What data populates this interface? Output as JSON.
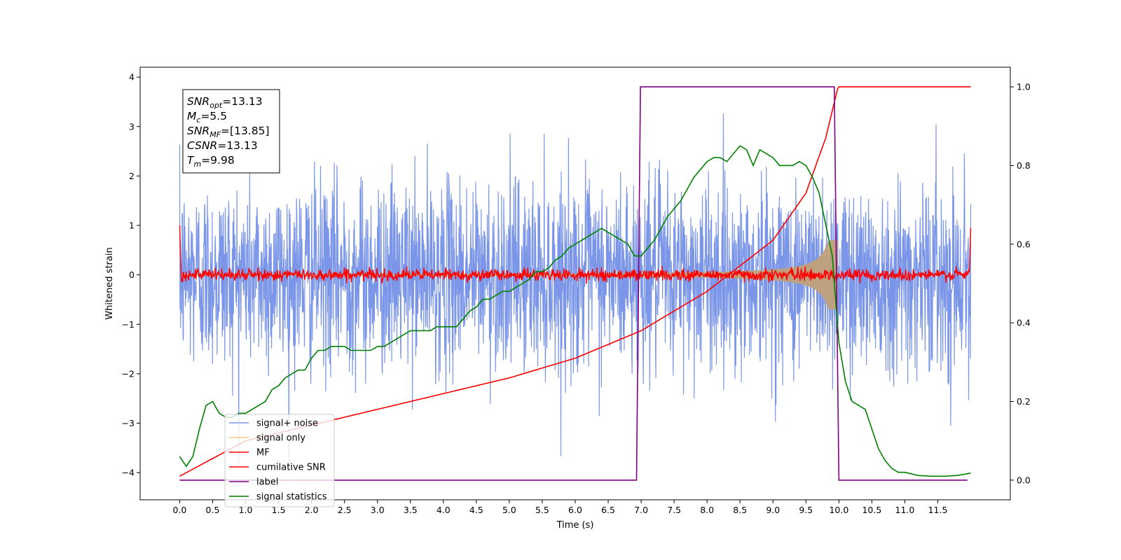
{
  "chart_data": {
    "type": "line",
    "xlabel": "Time (s)",
    "ylabel": "Whitened strain",
    "xlim": [
      -0.6,
      12.6
    ],
    "ylim_left": [
      -4.55,
      4.2
    ],
    "ylim_right": [
      -0.05,
      1.05
    ],
    "x_ticks": [
      "0.0",
      "0.5",
      "1.0",
      "1.5",
      "2.0",
      "2.5",
      "3.0",
      "3.5",
      "4.0",
      "4.5",
      "5.0",
      "5.5",
      "6.0",
      "6.5",
      "7.0",
      "7.5",
      "8.0",
      "8.5",
      "9.0",
      "9.5",
      "10.0",
      "10.5",
      "11.0",
      "11.5"
    ],
    "y_ticks_left": [
      "−4",
      "−3",
      "−2",
      "−1",
      "0",
      "1",
      "2",
      "3",
      "4"
    ],
    "y_ticks_right": [
      "0.0",
      "0.2",
      "0.4",
      "0.6",
      "0.8",
      "1.0"
    ],
    "annotation": {
      "lines": [
        {
          "base": "SNR",
          "sub": "opt",
          "rest": "=13.13"
        },
        {
          "base": "M",
          "sub": "c",
          "rest": "=5.5"
        },
        {
          "base": "SNR",
          "sub": "MF",
          "rest": "=[13.85]"
        },
        {
          "base": "CSNR",
          "sub": "",
          "rest": "=13.13"
        },
        {
          "base": "T",
          "sub": "m",
          "rest": "=9.98"
        }
      ]
    },
    "legend": {
      "placement": "lower-left",
      "entries": [
        {
          "label": "signal+ noise",
          "color": "#7b96e8"
        },
        {
          "label": "signal only",
          "color": "#f5c97a"
        },
        {
          "label": "MF",
          "color": "#ff0000"
        },
        {
          "label": "cumilative SNR",
          "color": "#ff0000"
        },
        {
          "label": "label",
          "color": "#800080"
        },
        {
          "label": "signal statistics",
          "color": "#008000"
        }
      ]
    },
    "series": [
      {
        "name": "signal+ noise",
        "axis": "left",
        "color": "#7b96e8",
        "kind": "noise",
        "t_range": [
          0.0,
          12.0
        ],
        "sigma": 0.95,
        "min": -4.15,
        "max": 3.83
      },
      {
        "name": "signal only",
        "axis": "left",
        "color": "#c0a07a",
        "kind": "chirp_envelope",
        "t_range": [
          0.0,
          9.98
        ],
        "peak_amplitude": 0.7
      },
      {
        "name": "MF",
        "axis": "left",
        "color": "#ff0000",
        "kind": "mf_noise",
        "t_range": [
          0.0,
          12.0
        ],
        "sigma": 0.06,
        "start_value": 1.0,
        "end_value": 0.95
      },
      {
        "name": "cumilative SNR",
        "axis": "right",
        "color": "#ff0000",
        "x": [
          0.0,
          1.0,
          2.0,
          3.0,
          4.0,
          5.0,
          6.0,
          7.0,
          8.0,
          9.0,
          9.5,
          9.8,
          9.98,
          10.0,
          12.0
        ],
        "y": [
          0.01,
          0.1,
          0.14,
          0.18,
          0.22,
          0.26,
          0.31,
          0.38,
          0.48,
          0.61,
          0.73,
          0.87,
          0.995,
          1.0,
          1.0
        ]
      },
      {
        "name": "label",
        "axis": "right",
        "color": "#800080",
        "x": [
          0.0,
          6.93,
          6.99,
          9.93,
          10.0,
          11.95
        ],
        "y": [
          0.0,
          0.0,
          1.0,
          1.0,
          0.0,
          0.0
        ]
      },
      {
        "name": "signal statistics",
        "axis": "right",
        "color": "#008000",
        "x": [
          0.0,
          0.1,
          0.2,
          0.3,
          0.4,
          0.5,
          0.6,
          0.7,
          0.8,
          0.9,
          1.0,
          1.1,
          1.2,
          1.3,
          1.4,
          1.5,
          1.6,
          1.7,
          1.8,
          1.9,
          2.0,
          2.1,
          2.2,
          2.3,
          2.4,
          2.5,
          2.6,
          2.7,
          2.8,
          2.9,
          3.0,
          3.1,
          3.2,
          3.3,
          3.4,
          3.5,
          3.6,
          3.7,
          3.8,
          3.9,
          4.0,
          4.1,
          4.2,
          4.3,
          4.4,
          4.5,
          4.6,
          4.7,
          4.8,
          4.9,
          5.0,
          5.1,
          5.2,
          5.3,
          5.4,
          5.5,
          5.6,
          5.7,
          5.8,
          5.9,
          6.0,
          6.1,
          6.2,
          6.3,
          6.4,
          6.5,
          6.6,
          6.7,
          6.8,
          6.9,
          7.0,
          7.1,
          7.2,
          7.3,
          7.4,
          7.5,
          7.6,
          7.7,
          7.8,
          7.9,
          8.0,
          8.1,
          8.2,
          8.3,
          8.4,
          8.5,
          8.6,
          8.7,
          8.8,
          8.9,
          9.0,
          9.1,
          9.2,
          9.3,
          9.4,
          9.5,
          9.6,
          9.7,
          9.8,
          9.9,
          10.0,
          10.1,
          10.2,
          10.3,
          10.4,
          10.5,
          10.6,
          10.7,
          10.8,
          10.9,
          11.0,
          11.2,
          11.4,
          11.6,
          11.8,
          12.0
        ],
        "y": [
          0.06,
          0.035,
          0.06,
          0.13,
          0.19,
          0.2,
          0.17,
          0.16,
          0.16,
          0.17,
          0.17,
          0.18,
          0.19,
          0.2,
          0.23,
          0.24,
          0.26,
          0.27,
          0.28,
          0.28,
          0.31,
          0.33,
          0.33,
          0.34,
          0.34,
          0.34,
          0.33,
          0.33,
          0.33,
          0.33,
          0.34,
          0.34,
          0.35,
          0.36,
          0.37,
          0.38,
          0.38,
          0.38,
          0.38,
          0.39,
          0.39,
          0.39,
          0.39,
          0.41,
          0.43,
          0.44,
          0.46,
          0.46,
          0.47,
          0.48,
          0.48,
          0.49,
          0.5,
          0.51,
          0.53,
          0.53,
          0.54,
          0.56,
          0.57,
          0.59,
          0.6,
          0.61,
          0.62,
          0.63,
          0.64,
          0.63,
          0.62,
          0.61,
          0.6,
          0.57,
          0.57,
          0.59,
          0.61,
          0.64,
          0.67,
          0.69,
          0.71,
          0.74,
          0.77,
          0.79,
          0.81,
          0.82,
          0.82,
          0.81,
          0.83,
          0.85,
          0.84,
          0.8,
          0.84,
          0.83,
          0.82,
          0.8,
          0.8,
          0.8,
          0.81,
          0.8,
          0.77,
          0.73,
          0.65,
          0.57,
          0.35,
          0.25,
          0.2,
          0.19,
          0.18,
          0.13,
          0.08,
          0.05,
          0.03,
          0.02,
          0.02,
          0.012,
          0.01,
          0.01,
          0.012,
          0.018
        ]
      }
    ]
  }
}
